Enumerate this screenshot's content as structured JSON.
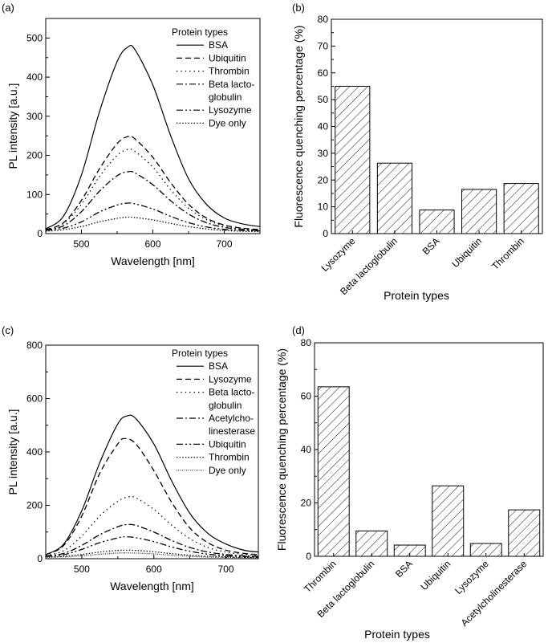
{
  "chart_data": [
    {
      "panel": "(a)",
      "type": "line",
      "xlabel": "Wavelength [nm]",
      "ylabel": "PL intensity [a.u.]",
      "xlim": [
        450,
        750
      ],
      "ylim": [
        0,
        550
      ],
      "xticks": [
        500,
        600,
        700
      ],
      "yticks": [
        0,
        100,
        200,
        300,
        400,
        500
      ],
      "legend_title": "Protein types",
      "legend_position": "top-right",
      "series": [
        {
          "name": "BSA",
          "style": "solid",
          "peak_x": 565,
          "peak_y": 477,
          "x": [
            450,
            475,
            500,
            525,
            550,
            565,
            575,
            600,
            625,
            650,
            675,
            700,
            725,
            750
          ],
          "y": [
            12,
            45,
            150,
            310,
            440,
            477,
            470,
            380,
            250,
            140,
            75,
            40,
            25,
            18
          ]
        },
        {
          "name": "Ubiquitin",
          "style": "dashed",
          "peak_x": 565,
          "peak_y": 248,
          "x": [
            450,
            475,
            500,
            525,
            550,
            565,
            575,
            600,
            625,
            650,
            675,
            700,
            725,
            750
          ],
          "y": [
            10,
            28,
            85,
            165,
            230,
            248,
            242,
            195,
            130,
            75,
            40,
            22,
            14,
            10
          ]
        },
        {
          "name": "Thrombin",
          "style": "dotted",
          "peak_x": 565,
          "peak_y": 215,
          "x": [
            450,
            475,
            500,
            525,
            550,
            565,
            575,
            600,
            625,
            650,
            675,
            700,
            725,
            750
          ],
          "y": [
            10,
            26,
            75,
            145,
            200,
            215,
            210,
            170,
            112,
            65,
            36,
            20,
            13,
            9
          ]
        },
        {
          "name": "Beta lacto-\nglobulin",
          "style": "dashdot",
          "peak_x": 565,
          "peak_y": 158,
          "x": [
            450,
            475,
            500,
            525,
            550,
            565,
            575,
            600,
            625,
            650,
            675,
            700,
            725,
            750
          ],
          "y": [
            9,
            20,
            56,
            108,
            148,
            158,
            155,
            125,
            84,
            50,
            28,
            16,
            11,
            8
          ]
        },
        {
          "name": "Lysozyme",
          "style": "dashdotdot",
          "peak_x": 565,
          "peak_y": 78,
          "x": [
            450,
            475,
            500,
            525,
            550,
            565,
            575,
            600,
            625,
            650,
            675,
            700,
            725,
            750
          ],
          "y": [
            8,
            14,
            30,
            55,
            73,
            78,
            76,
            63,
            44,
            28,
            17,
            11,
            8,
            7
          ]
        },
        {
          "name": "Dye only",
          "style": "densedot",
          "peak_x": 565,
          "peak_y": 42,
          "x": [
            450,
            475,
            500,
            525,
            550,
            565,
            575,
            600,
            625,
            650,
            675,
            700,
            725,
            750
          ],
          "y": [
            6,
            10,
            18,
            30,
            39,
            42,
            41,
            35,
            26,
            18,
            12,
            8,
            6,
            5
          ]
        }
      ]
    },
    {
      "panel": "(b)",
      "type": "bar",
      "xlabel": "Protein types",
      "ylabel": "Fluorescence quenching percentage (%)",
      "ylim": [
        0,
        80
      ],
      "yticks": [
        0,
        10,
        20,
        30,
        40,
        50,
        60,
        70,
        80
      ],
      "categories": [
        "Lysozyme",
        "Beta lactoglobulin",
        "BSA",
        "Ubiquitin",
        "Thrombin"
      ],
      "values": [
        55,
        26.3,
        8.8,
        16.5,
        18.7
      ]
    },
    {
      "panel": "(c)",
      "type": "line",
      "xlabel": "Wavelength [nm]",
      "ylabel": "PL intensity [a.u.]",
      "xlim": [
        450,
        745
      ],
      "ylim": [
        0,
        800
      ],
      "xticks": [
        500,
        600,
        700
      ],
      "yticks": [
        0,
        200,
        400,
        600,
        800
      ],
      "legend_title": "Protein types",
      "legend_position": "top-right",
      "series": [
        {
          "name": "BSA",
          "style": "solid",
          "peak_x": 563,
          "peak_y": 535,
          "x": [
            450,
            475,
            500,
            525,
            550,
            563,
            575,
            600,
            625,
            650,
            675,
            700,
            725,
            745
          ],
          "y": [
            15,
            55,
            180,
            360,
            505,
            535,
            525,
            430,
            290,
            170,
            95,
            55,
            32,
            25
          ]
        },
        {
          "name": "Lysozyme",
          "style": "dashed",
          "peak_x": 560,
          "peak_y": 450,
          "x": [
            450,
            475,
            500,
            525,
            550,
            560,
            575,
            600,
            625,
            650,
            675,
            700,
            725,
            745
          ],
          "y": [
            15,
            50,
            160,
            320,
            430,
            450,
            430,
            330,
            210,
            115,
            60,
            32,
            20,
            15
          ]
        },
        {
          "name": "Beta lacto-\nglobulin",
          "style": "dotted",
          "peak_x": 565,
          "peak_y": 232,
          "x": [
            450,
            475,
            500,
            525,
            550,
            565,
            575,
            600,
            625,
            650,
            675,
            700,
            725,
            745
          ],
          "y": [
            12,
            30,
            85,
            160,
            215,
            232,
            228,
            185,
            125,
            75,
            42,
            25,
            16,
            12
          ]
        },
        {
          "name": "Acetylcho-\nlinesterase",
          "style": "dashdot",
          "peak_x": 563,
          "peak_y": 128,
          "x": [
            450,
            475,
            500,
            525,
            550,
            563,
            575,
            600,
            625,
            650,
            675,
            700,
            725,
            745
          ],
          "y": [
            10,
            20,
            50,
            90,
            120,
            128,
            125,
            100,
            68,
            42,
            25,
            16,
            11,
            9
          ]
        },
        {
          "name": "Ubiquitin",
          "style": "dashdotdot",
          "peak_x": 560,
          "peak_y": 82,
          "x": [
            450,
            475,
            500,
            525,
            550,
            560,
            575,
            600,
            625,
            650,
            675,
            700,
            725,
            745
          ],
          "y": [
            9,
            15,
            35,
            60,
            78,
            82,
            79,
            64,
            44,
            28,
            17,
            11,
            8,
            7
          ]
        },
        {
          "name": "Thrombin",
          "style": "densedot",
          "peak_x": 560,
          "peak_y": 32,
          "x": [
            450,
            475,
            500,
            525,
            550,
            560,
            575,
            600,
            625,
            650,
            675,
            700,
            725,
            745
          ],
          "y": [
            6,
            9,
            16,
            25,
            31,
            32,
            31,
            26,
            19,
            13,
            9,
            7,
            5,
            5
          ]
        },
        {
          "name": "Dye only",
          "style": "finedot",
          "peak_x": 560,
          "peak_y": 22,
          "x": [
            450,
            475,
            500,
            525,
            550,
            560,
            575,
            600,
            625,
            650,
            675,
            700,
            725,
            745
          ],
          "y": [
            5,
            7,
            11,
            17,
            21,
            22,
            21,
            18,
            13,
            9,
            6,
            5,
            4,
            4
          ]
        }
      ]
    },
    {
      "panel": "(d)",
      "type": "bar",
      "xlabel": "Protein types",
      "ylabel": "Fluorescence quenching percentage (%)",
      "ylim": [
        0,
        80
      ],
      "yticks": [
        0,
        20,
        40,
        60,
        80
      ],
      "categories": [
        "Thrombin",
        "Beta lactoglobulin",
        "BSA",
        "Ubiquitin",
        "Lysozyme",
        "Acetylcholinesterase"
      ],
      "values": [
        63.5,
        9.5,
        4.2,
        26.4,
        4.8,
        17.4
      ]
    }
  ]
}
